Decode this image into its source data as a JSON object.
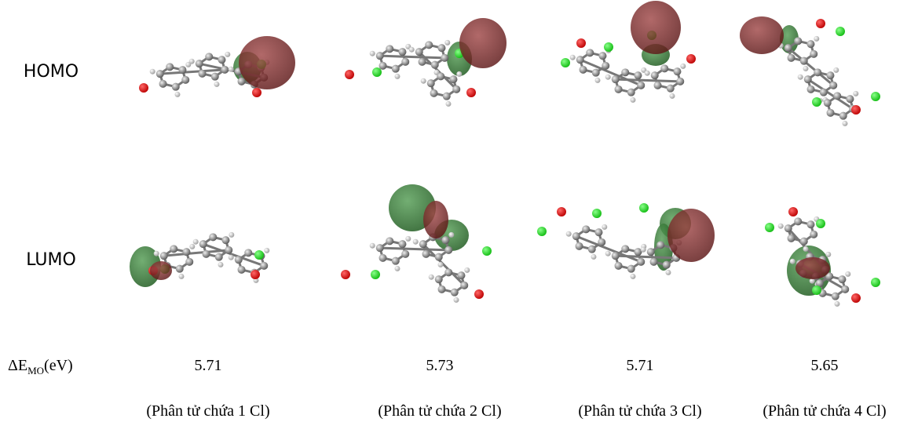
{
  "rows": {
    "homo": "HOMO",
    "lumo": "LUMO",
    "gap": {
      "symbol": "ΔE",
      "subscript": "MO",
      "unit": "(eV)"
    }
  },
  "columns": [
    {
      "gap": 5.71,
      "caption": "(Phân tử chứa 1 Cl)"
    },
    {
      "gap": 5.73,
      "caption": "(Phân tử chứa 2 Cl)"
    },
    {
      "gap": 5.71,
      "caption": "(Phân tử chứa 3 Cl)"
    },
    {
      "gap": 5.65,
      "caption": "(Phân tử chứa 4 Cl)"
    }
  ]
}
